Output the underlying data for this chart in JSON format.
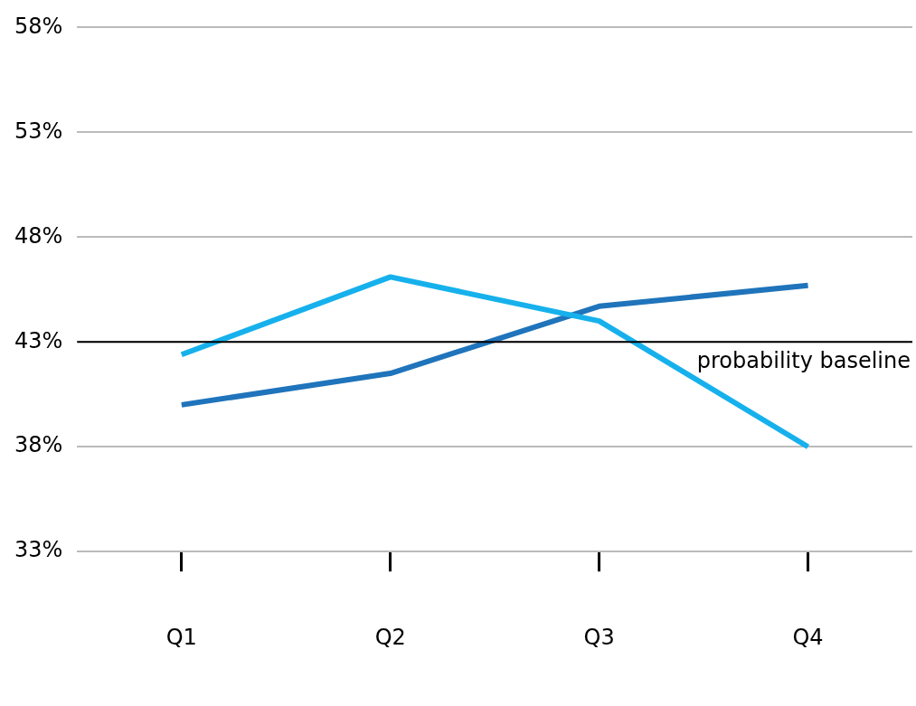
{
  "chart_data": {
    "type": "line",
    "categories": [
      "Q1",
      "Q2",
      "Q3",
      "Q4"
    ],
    "series": [
      {
        "color": "#16b1ec",
        "values": [
          42.4,
          46.1,
          44.0,
          38.0
        ]
      },
      {
        "color": "#1f74bb",
        "values": [
          40.0,
          41.5,
          44.7,
          45.7
        ]
      }
    ],
    "ylim": [
      33,
      58
    ],
    "yticks": [
      {
        "value": 33,
        "label": "33%"
      },
      {
        "value": 38,
        "label": "38%"
      },
      {
        "value": 43,
        "label": "43%"
      },
      {
        "value": 48,
        "label": "48%"
      },
      {
        "value": 53,
        "label": "53%"
      },
      {
        "value": 58,
        "label": "58%"
      }
    ],
    "grid": "y",
    "legend": false,
    "marker": "none",
    "line_style": "solid",
    "ref_lines": [
      {
        "axis": "y",
        "value": 43,
        "label": "probability baseline",
        "color": "#000000"
      }
    ]
  }
}
